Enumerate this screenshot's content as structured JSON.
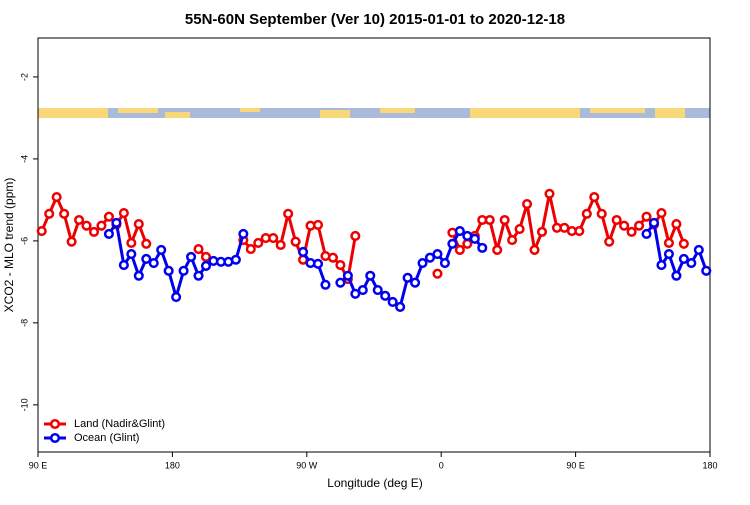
{
  "chart_data": {
    "type": "line",
    "title": "55N-60N September (Ver 10)   2015-01-01 to 2020-12-18",
    "x_label": "Longitude (deg E)",
    "y_label": "XCO2 - MLO trend (ppm)",
    "xlim": [
      90,
      540
    ],
    "ylim": [
      -11.15,
      -1.05
    ],
    "xticks": [
      {
        "value": 90,
        "label": "90 E"
      },
      {
        "value": 180,
        "label": "180"
      },
      {
        "value": 270,
        "label": "90 W"
      },
      {
        "value": 360,
        "label": "0"
      },
      {
        "value": 450,
        "label": "90 E"
      },
      {
        "value": 540,
        "label": "180"
      }
    ],
    "yticks": [
      -2,
      -4,
      -6,
      -8,
      -10
    ],
    "legend": "bottom-left",
    "x": [
      92.5,
      97.5,
      102.5,
      107.5,
      112.5,
      117.5,
      122.5,
      127.5,
      132.5,
      137.5,
      142.5,
      147.5,
      152.5,
      157.5,
      162.5,
      167.5,
      172.5,
      177.5,
      182.5,
      187.5,
      192.5,
      197.5,
      202.5,
      207.5,
      212.5,
      217.5,
      222.5,
      227.5,
      232.5,
      237.5,
      242.5,
      247.5,
      252.5,
      257.5,
      262.5,
      267.5,
      272.5,
      277.5,
      282.5,
      287.5,
      292.5,
      297.5,
      302.5,
      307.5,
      312.5,
      317.5,
      322.5,
      327.5,
      332.5,
      337.5,
      342.5,
      347.5,
      352.5,
      357.5,
      362.5,
      367.5,
      372.5,
      377.5,
      382.5,
      387.5,
      392.5,
      397.5,
      402.5,
      407.5,
      412.5,
      417.5,
      422.5,
      427.5,
      432.5,
      437.5,
      442.5,
      447.5,
      452.5,
      457.5,
      462.5,
      467.5,
      472.5,
      477.5,
      482.5,
      487.5,
      492.5,
      497.5,
      502.5,
      507.5,
      512.5,
      517.5,
      522.5,
      527.5,
      532.5,
      537.5
    ],
    "series": [
      {
        "name": "Land (Nadir&Glint)",
        "color": "#ee0000",
        "values": [
          -5.76,
          -5.34,
          -4.93,
          -5.34,
          -6.02,
          -5.49,
          -5.63,
          -5.78,
          -5.63,
          -5.41,
          -5.6,
          -5.32,
          -6.05,
          -5.59,
          -6.07,
          null,
          null,
          null,
          null,
          null,
          null,
          -6.2,
          -6.39,
          null,
          null,
          null,
          null,
          -5.98,
          -6.2,
          -6.05,
          -5.93,
          -5.93,
          -6.1,
          -5.34,
          -6.02,
          -6.46,
          -5.63,
          -5.61,
          -6.37,
          -6.41,
          -6.59,
          -6.93,
          -5.88,
          null,
          null,
          null,
          null,
          null,
          null,
          null,
          null,
          null,
          null,
          -6.8,
          null,
          -5.8,
          -6.22,
          -6.07,
          -5.88,
          -5.49,
          -5.49,
          -6.22,
          -5.49,
          -5.98,
          -5.71,
          -5.1,
          -6.22,
          -5.78,
          -4.85,
          -5.68,
          -5.68,
          -5.76,
          -5.76,
          -5.34,
          -4.93,
          -5.34,
          -6.02,
          -5.49,
          -5.63,
          -5.78,
          -5.63,
          -5.41,
          -5.6,
          -5.32,
          -6.05,
          -5.59,
          -6.07,
          null,
          null,
          null
        ]
      },
      {
        "name": "Ocean (Glint)",
        "color": "#0000ee",
        "values": [
          null,
          null,
          null,
          null,
          null,
          null,
          null,
          null,
          null,
          -5.83,
          -5.56,
          -6.59,
          -6.32,
          -6.85,
          -6.44,
          -6.54,
          -6.22,
          -6.73,
          -7.37,
          -6.73,
          -6.39,
          -6.85,
          -6.61,
          -6.49,
          -6.51,
          -6.51,
          -6.46,
          -5.83,
          null,
          null,
          null,
          null,
          null,
          null,
          null,
          -6.27,
          -6.54,
          -6.56,
          -7.07,
          null,
          -7.02,
          -6.85,
          -7.29,
          -7.2,
          -6.85,
          -7.2,
          -7.34,
          -7.49,
          -7.61,
          -6.9,
          -7.02,
          -6.54,
          -6.41,
          -6.32,
          -6.54,
          -6.07,
          -5.76,
          -5.88,
          -5.95,
          -6.17,
          null,
          null,
          null,
          null,
          null,
          null,
          null,
          null,
          null,
          null,
          null,
          null,
          null,
          null,
          null,
          null,
          null,
          null,
          null,
          null,
          null,
          -5.83,
          -5.56,
          -6.59,
          -6.32,
          -6.85,
          -6.44,
          -6.54,
          -6.22,
          -6.73
        ]
      }
    ]
  }
}
